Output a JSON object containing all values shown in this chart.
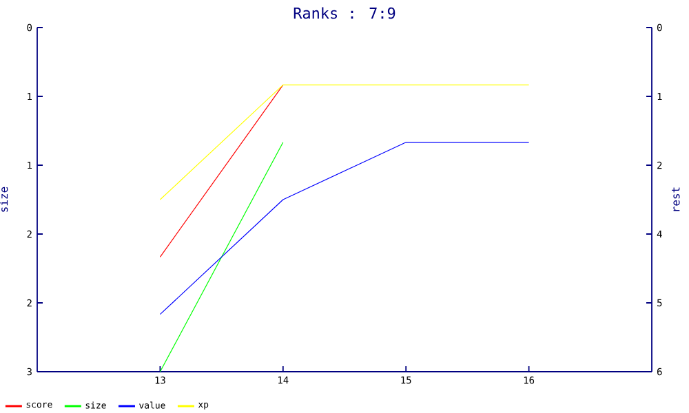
{
  "chart_data": {
    "type": "line",
    "title": "Ranks : 7:9",
    "ylabel": "size",
    "y2label": "rest",
    "x": [
      13,
      14,
      15,
      16
    ],
    "series": [
      {
        "name": "score",
        "color": "#ff0000",
        "values": [
          2.0,
          0.5,
          null,
          null
        ]
      },
      {
        "name": "size",
        "color": "#00ff00",
        "values": [
          3.0,
          1.0,
          null,
          null
        ]
      },
      {
        "name": "value",
        "color": "#0000ff",
        "values": [
          2.5,
          1.5,
          1.0,
          1.0
        ]
      },
      {
        "name": "xp",
        "color": "#ffff00",
        "values": [
          1.5,
          0.5,
          0.5,
          0.5
        ]
      }
    ],
    "xlim": [
      12,
      17
    ],
    "xticks": [
      13,
      14,
      15,
      16
    ],
    "ylim": [
      3,
      0
    ],
    "yticks": [
      0,
      {
        "value": 0.6,
        "label": "1"
      },
      {
        "value": 1.2,
        "label": "1"
      },
      {
        "value": 1.8,
        "label": "2"
      },
      {
        "value": 2.4,
        "label": "2"
      },
      3
    ],
    "y2lim": [
      6,
      0
    ],
    "y2ticks": [
      0,
      {
        "value": 1.2,
        "label": "1"
      },
      {
        "value": 2.4,
        "label": "2"
      },
      {
        "value": 3.6,
        "label": "4"
      },
      {
        "value": 4.8,
        "label": "5"
      },
      6
    ],
    "legend": "bottom left",
    "grid": false,
    "marker": "none",
    "line_style": "solid"
  }
}
